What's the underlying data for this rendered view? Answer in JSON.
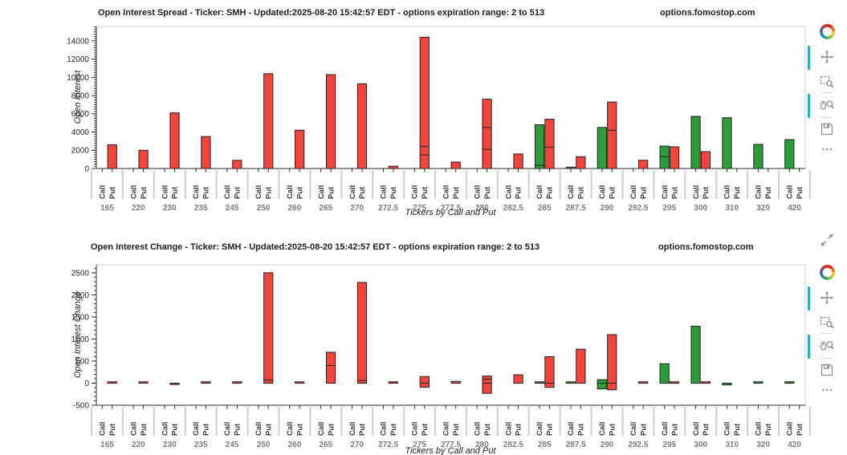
{
  "page": {
    "background": "#ffffff"
  },
  "chart_data": [
    {
      "type": "bar",
      "title": "Open Interest Spread - Ticker: SMH - Updated:2025-08-20 15:42:57 EDT - options expiration range: 2 to 513",
      "watermark": "options.fomostop.com",
      "ylabel": "Open Interest",
      "xlabel": "Tickers by Call and Put",
      "bar_sublabels": [
        "Call",
        "Put"
      ],
      "categories": [
        "165",
        "220",
        "230",
        "235",
        "245",
        "250",
        "260",
        "265",
        "270",
        "272.5",
        "275",
        "277.5",
        "280",
        "282.5",
        "285",
        "287.5",
        "290",
        "292.5",
        "295",
        "300",
        "310",
        "320",
        "420"
      ],
      "ylim": [
        0,
        15580
      ],
      "yticks": [
        0,
        2000,
        4000,
        6000,
        8000,
        10000,
        12000,
        14000
      ],
      "minor_tick_step": 250,
      "grid": false,
      "legend": "none",
      "series": [
        {
          "name": "Call",
          "color": "#2b9e3b",
          "values": [
            null,
            null,
            null,
            null,
            null,
            null,
            null,
            null,
            null,
            null,
            null,
            null,
            null,
            null,
            4800,
            150,
            4500,
            null,
            2460,
            5720,
            5570,
            2650,
            3170
          ],
          "neg_values": [
            null,
            null,
            null,
            null,
            null,
            null,
            null,
            null,
            null,
            null,
            null,
            null,
            null,
            null,
            null,
            null,
            null,
            null,
            null,
            null,
            null,
            null,
            null
          ],
          "segments": {
            "14": [
              350
            ],
            "18": [
              1300
            ]
          }
        },
        {
          "name": "Put",
          "color": "#f4453c",
          "values": [
            2600,
            2000,
            6100,
            3500,
            900,
            10400,
            4200,
            10300,
            9300,
            250,
            14400,
            700,
            7600,
            1600,
            5400,
            1300,
            7300,
            900,
            2380,
            1850,
            null,
            null,
            null
          ],
          "neg_values": [
            null,
            null,
            null,
            null,
            null,
            null,
            null,
            null,
            null,
            null,
            null,
            null,
            null,
            null,
            null,
            null,
            null,
            null,
            null,
            null,
            null,
            null,
            null
          ],
          "segments": {
            "10": [
              1500,
              2400
            ],
            "12": [
              2100,
              4500
            ],
            "14": [
              2350
            ],
            "16": [
              4200
            ]
          }
        }
      ]
    },
    {
      "type": "bar",
      "title": "Open Interest Change - Ticker: SMH - Updated:2025-08-20 15:42:57 EDT - options expiration range: 2 to 513",
      "watermark": "options.fomostop.com",
      "ylabel": "Open Interest Change",
      "xlabel": "Tickers by Call and Put",
      "bar_sublabels": [
        "Call",
        "Put"
      ],
      "categories": [
        "165",
        "220",
        "230",
        "235",
        "245",
        "250",
        "260",
        "265",
        "270",
        "272.5",
        "275",
        "277.5",
        "280",
        "282.5",
        "285",
        "287.5",
        "290",
        "292.5",
        "295",
        "300",
        "310",
        "320",
        "420"
      ],
      "ylim": [
        -500,
        2680
      ],
      "yticks": [
        -500,
        0,
        500,
        1000,
        1500,
        2000,
        2500
      ],
      "minor_tick_step": 100,
      "grid": false,
      "legend": "none",
      "series": [
        {
          "name": "Call",
          "color": "#2b9e3b",
          "values": [
            null,
            null,
            null,
            null,
            null,
            null,
            null,
            null,
            null,
            null,
            null,
            null,
            null,
            null,
            0,
            0,
            80,
            null,
            440,
            1290,
            null,
            0,
            0
          ],
          "neg_values": [
            null,
            null,
            null,
            null,
            null,
            null,
            null,
            null,
            null,
            null,
            null,
            null,
            null,
            null,
            null,
            null,
            -130,
            null,
            null,
            null,
            -40,
            null,
            null
          ],
          "segments": {}
        },
        {
          "name": "Put",
          "color": "#f4453c",
          "values": [
            0,
            0,
            null,
            0,
            0,
            2500,
            30,
            700,
            2280,
            0,
            150,
            40,
            160,
            190,
            600,
            770,
            1100,
            30,
            0,
            0,
            null,
            null,
            null
          ],
          "neg_values": [
            null,
            null,
            -30,
            null,
            null,
            null,
            null,
            null,
            null,
            null,
            -90,
            null,
            -230,
            null,
            -95,
            null,
            -150,
            null,
            null,
            null,
            null,
            null,
            null
          ],
          "segments": {
            "5": [
              70
            ],
            "7": [
              400
            ],
            "8": [
              60
            ],
            "12": [
              90
            ]
          }
        }
      ]
    }
  ],
  "toolbars": [
    {
      "icons": [
        "bokeh-logo",
        "pan-tool",
        "box-zoom-tool",
        "wheel-zoom-tool",
        "save-tool",
        "more-tools"
      ],
      "active_tools": [
        "pan-tool",
        "wheel-zoom-tool"
      ]
    },
    {
      "icons": [
        "expand-tool",
        "bokeh-logo",
        "pan-tool",
        "box-zoom-tool",
        "wheel-zoom-tool",
        "save-tool",
        "more-tools"
      ],
      "active_tools": [
        "pan-tool",
        "wheel-zoom-tool"
      ]
    }
  ],
  "colors": {
    "call": "#2b9e3b",
    "put": "#f4453c",
    "bar_outline": "#231f20",
    "axis": "#2b2b2b",
    "frame": "#cfd0d1",
    "separator": "#d4d4d4",
    "active_tool": "#26aae1",
    "tick_label": "#262626",
    "category_label": "#7d7d7d"
  }
}
